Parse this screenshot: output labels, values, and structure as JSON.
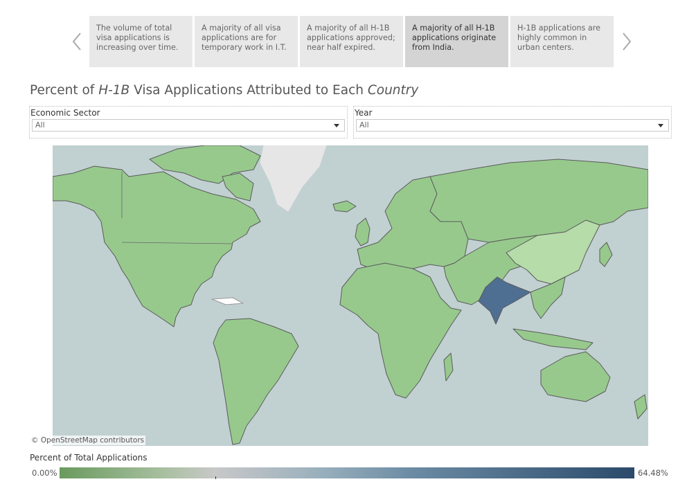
{
  "story": {
    "points": [
      {
        "text": "The volume of total visa applications is increasing over time."
      },
      {
        "text": "A majority of all visa applications are for temporary work in I.T."
      },
      {
        "text": "A majority of all H-1B applications approved; near half expired."
      },
      {
        "text": "A majority of all H-1B applications originate from India."
      },
      {
        "text": "H-1B applications are highly common in urban centers."
      }
    ],
    "active_index": 3
  },
  "title": {
    "part1": "Percent of ",
    "part2": "H-1B",
    "part3": " Visa Applications Attributed to Each ",
    "part4": "Country"
  },
  "filters": {
    "sector": {
      "label": "Economic Sector",
      "value": "All"
    },
    "year": {
      "label": "Year",
      "value": "All"
    }
  },
  "map": {
    "attribution": "© OpenStreetMap contributors",
    "highlighted_country": "India",
    "colors": {
      "ocean": "#c1d0d1",
      "default_country": "#97c98d",
      "low_country": "#b6dca9",
      "greenland": "#e6e6e6",
      "top_country": "#4e6f92",
      "border": "#5a5a5a"
    }
  },
  "legend": {
    "title": "Percent of Total Applications",
    "min_label": "0.00%",
    "max_label": "64.48%",
    "colors": [
      "#6a9a5e",
      "#c8c8c8",
      "#2b4a6b"
    ]
  }
}
